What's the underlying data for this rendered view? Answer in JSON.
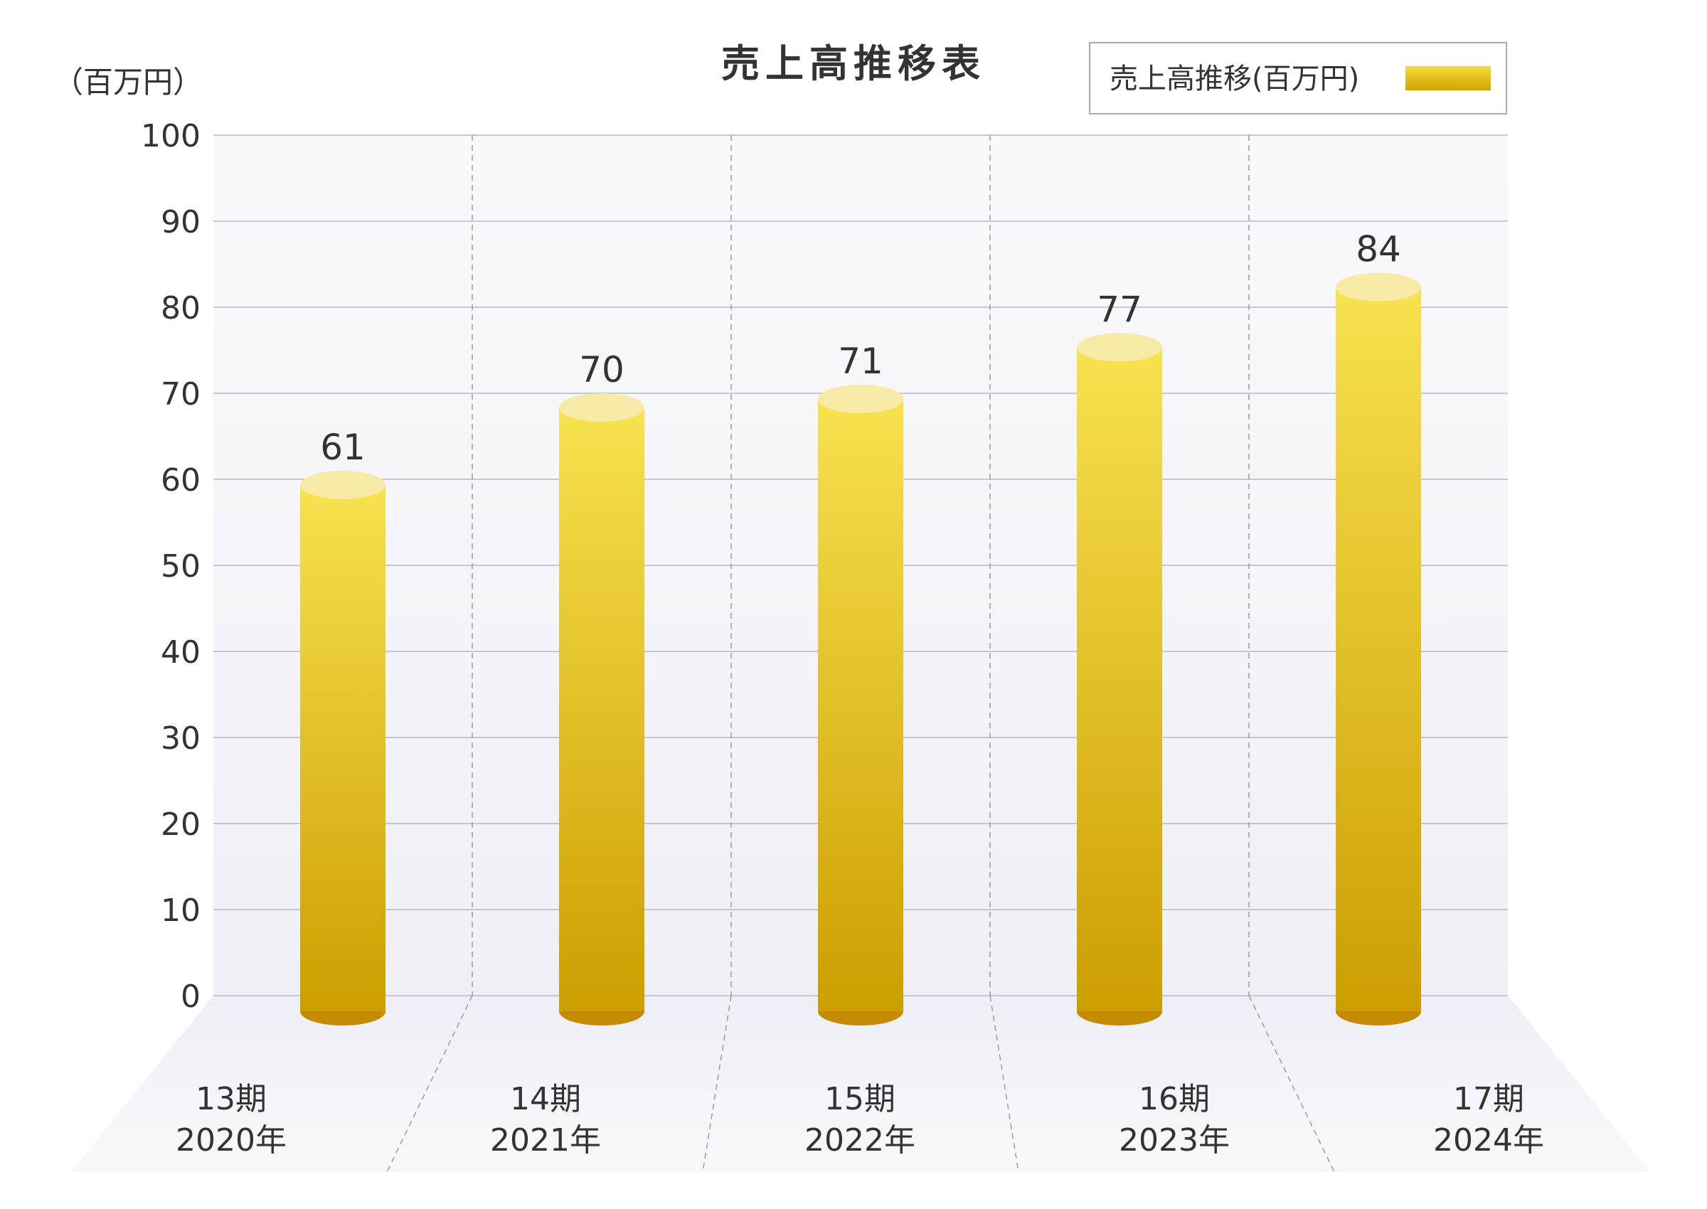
{
  "chart_data": {
    "type": "bar",
    "title": "売上高推移表",
    "unit_label": "（百万円）",
    "legend": {
      "label": "売上高推移(百万円)",
      "position": "top-right"
    },
    "categories": [
      {
        "period": "13期",
        "year": "2020年"
      },
      {
        "period": "14期",
        "year": "2021年"
      },
      {
        "period": "15期",
        "year": "2022年"
      },
      {
        "period": "16期",
        "year": "2023年"
      },
      {
        "period": "17期",
        "year": "2024年"
      }
    ],
    "series": [
      {
        "name": "売上高推移(百万円)",
        "values": [
          61,
          70,
          71,
          77,
          84
        ]
      }
    ],
    "ylim": [
      0,
      100
    ],
    "yticks": [
      "0",
      "10",
      "20",
      "30",
      "40",
      "50",
      "60",
      "70",
      "80",
      "90",
      "100"
    ],
    "grid": true,
    "colors": {
      "bar_top": "#f7e24f",
      "bar_bottom": "#cc9e00",
      "cap": "#f7eaa6",
      "base": "#c48a00"
    }
  }
}
